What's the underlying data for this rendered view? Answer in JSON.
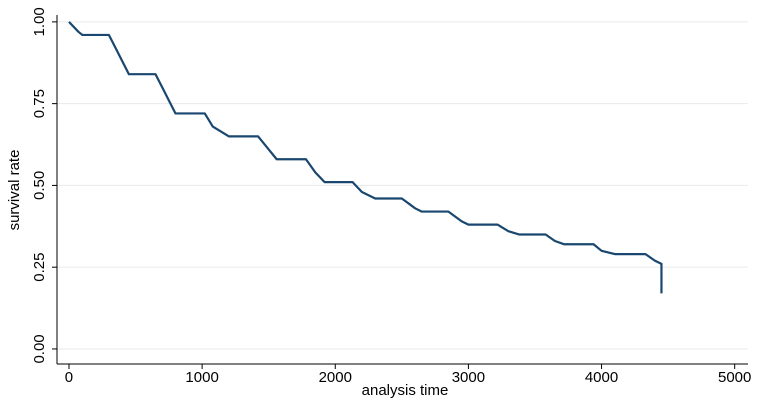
{
  "chart_data": {
    "type": "line",
    "x_label": "analysis time",
    "y_label": "survival rate",
    "xlim": [
      -90,
      5100
    ],
    "ylim": [
      -0.046,
      1.021
    ],
    "xticks": [
      0,
      1000,
      2000,
      3000,
      4000,
      5000
    ],
    "yticks": [
      {
        "value": 0,
        "label": "0.00"
      },
      {
        "value": 0.25,
        "label": "0.25"
      },
      {
        "value": 0.5,
        "label": "0.50"
      },
      {
        "value": 0.75,
        "label": "0.75"
      },
      {
        "value": 1,
        "label": "1.00"
      }
    ],
    "grid": true,
    "series": [
      {
        "color": "#1a476f",
        "x": [
          0,
          70,
          100,
          300,
          350,
          400,
          450,
          650,
          700,
          750,
          800,
          1020,
          1080,
          1200,
          1420,
          1500,
          1560,
          1780,
          1850,
          1920,
          2130,
          2200,
          2300,
          2500,
          2600,
          2650,
          2850,
          2950,
          3000,
          3220,
          3300,
          3380,
          3580,
          3650,
          3720,
          3940,
          4000,
          4100,
          4330,
          4400,
          4450,
          4450
        ],
        "values": [
          1.0,
          0.97,
          0.96,
          0.96,
          0.92,
          0.88,
          0.84,
          0.84,
          0.8,
          0.76,
          0.72,
          0.72,
          0.68,
          0.65,
          0.65,
          0.61,
          0.58,
          0.58,
          0.54,
          0.51,
          0.51,
          0.48,
          0.46,
          0.46,
          0.43,
          0.42,
          0.42,
          0.39,
          0.38,
          0.38,
          0.36,
          0.35,
          0.35,
          0.33,
          0.32,
          0.32,
          0.3,
          0.29,
          0.29,
          0.27,
          0.26,
          0.17
        ]
      }
    ]
  }
}
